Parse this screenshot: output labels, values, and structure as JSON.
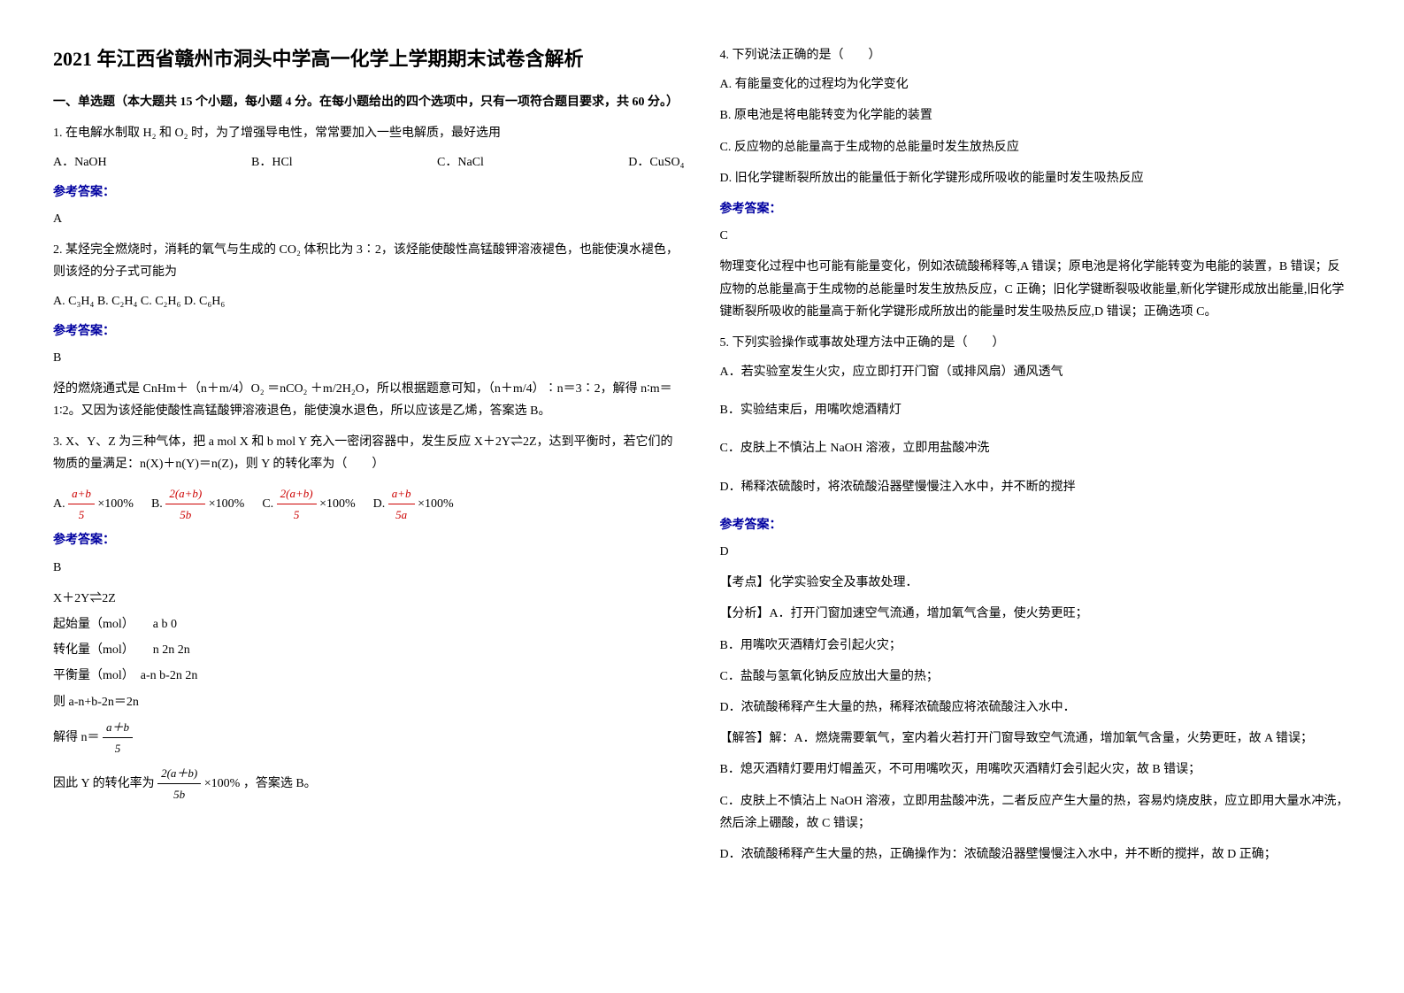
{
  "title": "2021 年江西省赣州市洞头中学高一化学上学期期末试卷含解析",
  "section1": "一、单选题（本大题共 15 个小题，每小题 4 分。在每小题给出的四个选项中，只有一项符合题目要求，共 60 分。）",
  "q1": {
    "text": "1. 在电解水制取 H₂ 和 O₂ 时，为了增强导电性，常常要加入一些电解质，最好选用",
    "optA": "A．NaOH",
    "optB": "B．HCl",
    "optC": "C．NaCl",
    "optD": "D．CuSO₄",
    "ansLabel": "参考答案：",
    "ans": "A"
  },
  "q2": {
    "text": "2. 某烃完全燃烧时，消耗的氧气与生成的 CO₂ 体积比为 3∶2，该烃能使酸性高锰酸钾溶液褪色，也能使溴水褪色，则该烃的分子式可能为",
    "opts": "A. C₃H₄ B. C₂H₄ C. C₂H₆ D. C₆H₆",
    "ansLabel": "参考答案：",
    "ans": "B",
    "sol": "烃的燃烧通式是 CnHm＋（n＋m/4）O₂ ＝nCO₂ ＋m/2H₂O，所以根据题意可知，（n＋m/4）∶n＝3∶2，解得 n∶m＝1∶2。又因为该烃能使酸性高锰酸钾溶液退色，能使溴水退色，所以应该是乙烯，答案选 B。"
  },
  "q3": {
    "text": "3. X、Y、Z 为三种气体，把 a mol X 和 b mol Y 充入一密闭容器中，发生反应 X＋2Y⇌2Z，达到平衡时，若它们的物质的量满足：n(X)＋n(Y)＝n(Z)，则 Y 的转化率为（　　）",
    "optAPrefix": "A.",
    "optASuffix": "×100%",
    "optBPrefix": "B.",
    "optBSuffix": "×100%",
    "optCPrefix": "C.",
    "optCSuffix": "×100%",
    "optDPrefix": "D.",
    "optDSuffix": "×100%",
    "fracA_num": "a+b",
    "fracA_den": "5",
    "fracB_num": "2(a+b)",
    "fracB_den": "5b",
    "fracC_num": "2(a+b)",
    "fracC_den": "5",
    "fracD_num": "a+b",
    "fracD_den": "5a",
    "ansLabel": "参考答案：",
    "ans": "B",
    "line1": "X＋2Y⇌2Z",
    "line2": "起始量（mol）　　a   b   0",
    "line3": "转化量（mol）　　n   2n   2n",
    "line4": "平衡量（mol）　a-n  b-2n  2n",
    "line5": "则 a-n+b-2n＝2n",
    "line6a": "解得 n＝",
    "line6_num": "a＋b",
    "line6_den": "5",
    "line7a": "因此 Y 的转化率为",
    "line7_num": "2(a＋b)",
    "line7_den": "5b",
    "line7_suffix": "×100%",
    "line7b": "，答案选 B。"
  },
  "q4": {
    "text": "4. 下列说法正确的是（　　）",
    "optA": "A. 有能量变化的过程均为化学变化",
    "optB": "B. 原电池是将电能转变为化学能的装置",
    "optC": "C. 反应物的总能量高于生成物的总能量时发生放热反应",
    "optD": "D. 旧化学键断裂所放出的能量低于新化学键形成所吸收的能量时发生吸热反应",
    "ansLabel": "参考答案：",
    "ans": "C",
    "sol": "物理变化过程中也可能有能量变化，例如浓硫酸稀释等,A 错误；原电池是将化学能转变为电能的装置，B 错误；反应物的总能量高于生成物的总能量时发生放热反应，C 正确；旧化学键断裂吸收能量,新化学键形成放出能量,旧化学键断裂所吸收的能量高于新化学键形成所放出的能量时发生吸热反应,D 错误；正确选项 C。"
  },
  "q5": {
    "text": "5. 下列实验操作或事故处理方法中正确的是（　　）",
    "optA": "A．若实验室发生火灾，应立即打开门窗（或排风扇）通风透气",
    "optB": "B．实验结束后，用嘴吹熄酒精灯",
    "optC": "C．皮肤上不慎沾上 NaOH 溶液，立即用盐酸冲洗",
    "optD": "D．稀释浓硫酸时，将浓硫酸沿器壁慢慢注入水中，并不断的搅拌",
    "ansLabel": "参考答案：",
    "ans": "D",
    "kd": "【考点】化学实验安全及事故处理．",
    "analysis": "【分析】A．打开门窗加速空气流通，增加氧气含量，使火势更旺；",
    "anB": "B．用嘴吹灭酒精灯会引起火灾；",
    "anC": "C．盐酸与氢氧化钠反应放出大量的热；",
    "anD": "D．浓硫酸稀释产生大量的热，稀释浓硫酸应将浓硫酸注入水中．",
    "solLabel": "【解答】解：A．燃烧需要氧气，室内着火若打开门窗导致空气流通，增加氧气含量，火势更旺，故 A 错误；",
    "solB": "B．熄灭酒精灯要用灯帽盖灭，不可用嘴吹灭，用嘴吹灭酒精灯会引起火灾，故 B 错误；",
    "solC": "C．皮肤上不慎沾上 NaOH 溶液，立即用盐酸冲洗，二者反应产生大量的热，容易灼烧皮肤，应立即用大量水冲洗，然后涂上硼酸，故 C 错误；",
    "solD": "D．浓硫酸稀释产生大量的热，正确操作为：浓硫酸沿器壁慢慢注入水中，并不断的搅拌，故 D 正确；"
  }
}
